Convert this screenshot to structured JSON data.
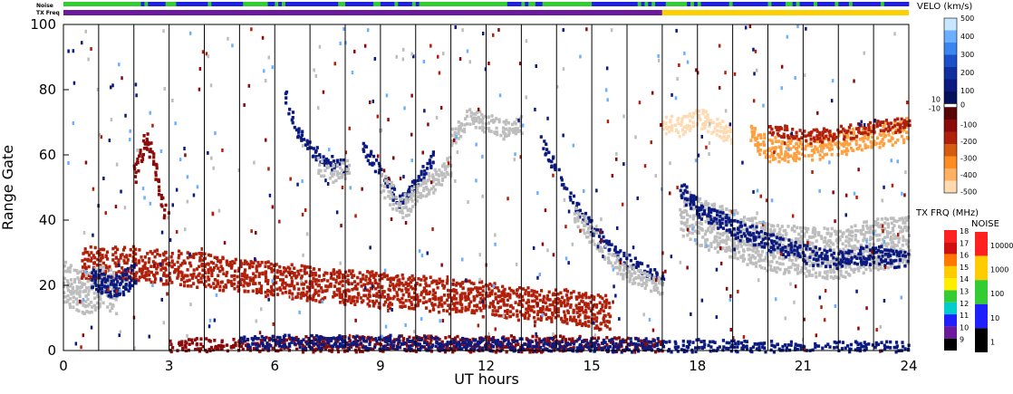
{
  "chart_data": {
    "type": "heatmap",
    "xlabel": "UT hours",
    "ylabel": "Range Gate",
    "xlim": [
      0,
      24
    ],
    "ylim": [
      0,
      100
    ],
    "x_ticks": [
      "0",
      "3",
      "6",
      "9",
      "12",
      "15",
      "18",
      "21",
      "24"
    ],
    "y_ticks": [
      "0",
      "20",
      "40",
      "60",
      "80",
      "100"
    ],
    "scan_boundaries_ut": [
      1,
      2,
      3,
      4,
      5,
      6,
      7,
      8,
      9,
      10,
      11,
      12,
      13,
      14,
      15,
      16,
      17,
      18,
      19,
      20,
      21,
      22,
      23
    ],
    "strips": {
      "noise_label": "Noise",
      "txfreq_label": "TX Freq",
      "noise_colors": [
        "#33cc33",
        "#2020e0"
      ],
      "txfreq_segments": [
        {
          "from": 0,
          "to": 17,
          "color": "#6a1a9a"
        },
        {
          "from": 17,
          "to": 24,
          "color": "#ffd000"
        }
      ]
    },
    "velocity_colorbar": {
      "title": "VELO (km/s)",
      "ticks_positive": [
        "500",
        "400",
        "300",
        "200",
        "100"
      ],
      "mid_labels": [
        "10",
        "0",
        "-10"
      ],
      "ticks_negative": [
        "-100",
        "-200",
        "-300",
        "-400",
        "-500"
      ]
    },
    "txfreq_colorbar": {
      "title": "TX FRQ (MHz)",
      "ticks": [
        "18",
        "17",
        "16",
        "15",
        "14",
        "13",
        "12",
        "11",
        "10",
        "9"
      ],
      "colors": [
        "#ff2020",
        "#d01010",
        "#ff7700",
        "#ffcc00",
        "#ffee00",
        "#33cc33",
        "#00cccc",
        "#2020ff",
        "#6a1a9a",
        "#000000"
      ]
    },
    "noise_colorbar": {
      "title": "NOISE",
      "ticks": [
        "10000",
        "1000",
        "100",
        "10",
        "1"
      ],
      "colors": [
        "#ff2020",
        "#ffcc00",
        "#33cc33",
        "#2020ff",
        "#000000"
      ]
    },
    "colors": {
      "ground_scatter": "#bdbdbd",
      "strong_negative": "#8b0a0a",
      "negative": "#b0200a",
      "mid_negative": "#d65a10",
      "weak_negative": "#ffa040",
      "faint_negative": "#ffd9b0",
      "positive": "#0a1a80",
      "mid_positive": "#1a50c8",
      "weak_positive": "#6bb0ff"
    },
    "features": [
      {
        "name": "red band",
        "color_key": "negative",
        "points": [
          [
            0.5,
            27
          ],
          [
            2,
            27
          ],
          [
            4,
            25
          ],
          [
            6,
            22
          ],
          [
            8,
            20
          ],
          [
            10,
            18
          ],
          [
            12,
            16
          ],
          [
            14,
            14
          ],
          [
            15.5,
            12
          ]
        ],
        "width": 6
      },
      {
        "name": "near range red",
        "color_key": "strong_negative",
        "points": [
          [
            3,
            1
          ],
          [
            7,
            2
          ],
          [
            10,
            2
          ],
          [
            14,
            2
          ],
          [
            17,
            1
          ]
        ],
        "width": 3
      },
      {
        "name": "near range blue",
        "color_key": "positive",
        "points": [
          [
            5,
            3
          ],
          [
            9,
            3
          ],
          [
            13,
            2
          ],
          [
            17,
            2
          ],
          [
            21,
            1
          ],
          [
            24,
            1
          ]
        ],
        "width": 2
      },
      {
        "name": "start ground scatter",
        "color_key": "ground_scatter",
        "points": [
          [
            0,
            22
          ],
          [
            0.5,
            18
          ],
          [
            1,
            20
          ],
          [
            1.5,
            18
          ]
        ],
        "width": 8
      },
      {
        "name": "start blue",
        "color_key": "positive",
        "points": [
          [
            0.8,
            22
          ],
          [
            1.5,
            20
          ],
          [
            2,
            24
          ]
        ],
        "width": 4
      },
      {
        "name": "red burst 2h",
        "color_key": "strong_negative",
        "points": [
          [
            2,
            55
          ],
          [
            2.3,
            65
          ],
          [
            2.5,
            60
          ],
          [
            2.8,
            45
          ],
          [
            3,
            38
          ]
        ],
        "width": 3
      },
      {
        "name": "blue arc 6-8h",
        "color_key": "positive",
        "points": [
          [
            6.3,
            78
          ],
          [
            6.6,
            68
          ],
          [
            7,
            62
          ],
          [
            7.5,
            58
          ],
          [
            8,
            57
          ]
        ],
        "width": 2
      },
      {
        "name": "gray arc 7-8h",
        "color_key": "ground_scatter",
        "points": [
          [
            7.2,
            57
          ],
          [
            7.6,
            55
          ],
          [
            8.1,
            56
          ]
        ],
        "width": 3
      },
      {
        "name": "blue arc 8.5-10h",
        "color_key": "positive",
        "points": [
          [
            8.5,
            62
          ],
          [
            9,
            55
          ],
          [
            9.5,
            46
          ],
          [
            10,
            52
          ],
          [
            10.5,
            60
          ]
        ],
        "width": 2
      },
      {
        "name": "gray arc 9-11h",
        "color_key": "ground_scatter",
        "points": [
          [
            9,
            52
          ],
          [
            9.6,
            44
          ],
          [
            10.2,
            50
          ],
          [
            11,
            58
          ]
        ],
        "width": 4
      },
      {
        "name": "arc 11-13h",
        "color_key": "ground_scatter",
        "points": [
          [
            11,
            66
          ],
          [
            11.5,
            72
          ],
          [
            12,
            70
          ],
          [
            12.5,
            68
          ],
          [
            13,
            70
          ]
        ],
        "width": 3
      },
      {
        "name": "descending blue",
        "color_key": "positive",
        "points": [
          [
            13.5,
            65
          ],
          [
            14,
            55
          ],
          [
            14.5,
            45
          ],
          [
            15,
            38
          ],
          [
            15.5,
            32
          ],
          [
            16,
            28
          ],
          [
            17,
            22
          ]
        ],
        "width": 2
      },
      {
        "name": "gray descending",
        "color_key": "ground_scatter",
        "points": [
          [
            14.5,
            42
          ],
          [
            15,
            35
          ],
          [
            15.5,
            28
          ],
          [
            16,
            24
          ],
          [
            17,
            20
          ]
        ],
        "width": 3
      },
      {
        "name": "late gray band",
        "color_key": "ground_scatter",
        "points": [
          [
            17.5,
            44
          ],
          [
            18,
            40
          ],
          [
            19,
            36
          ],
          [
            20,
            32
          ],
          [
            21,
            31
          ],
          [
            22,
            30
          ],
          [
            23,
            33
          ],
          [
            24,
            34
          ]
        ],
        "width": 9
      },
      {
        "name": "late blue band",
        "color_key": "positive",
        "points": [
          [
            17.5,
            50
          ],
          [
            18,
            44
          ],
          [
            19,
            38
          ],
          [
            20,
            34
          ],
          [
            21,
            30
          ],
          [
            22,
            28
          ],
          [
            23,
            30
          ],
          [
            24,
            28
          ]
        ],
        "width": 3
      },
      {
        "name": "late orange band",
        "color_key": "weak_negative",
        "points": [
          [
            19.5,
            66
          ],
          [
            20,
            62
          ],
          [
            21,
            62
          ],
          [
            22,
            64
          ],
          [
            23,
            66
          ],
          [
            24,
            68
          ]
        ],
        "width": 4
      },
      {
        "name": "late red band",
        "color_key": "negative",
        "points": [
          [
            20,
            68
          ],
          [
            21,
            66
          ],
          [
            22,
            67
          ],
          [
            23,
            69
          ],
          [
            24,
            70
          ]
        ],
        "width": 2
      },
      {
        "name": "late faint",
        "color_key": "faint_negative",
        "points": [
          [
            17,
            70
          ],
          [
            17.5,
            69
          ],
          [
            18,
            72
          ],
          [
            19,
            66
          ]
        ],
        "width": 3
      }
    ]
  }
}
